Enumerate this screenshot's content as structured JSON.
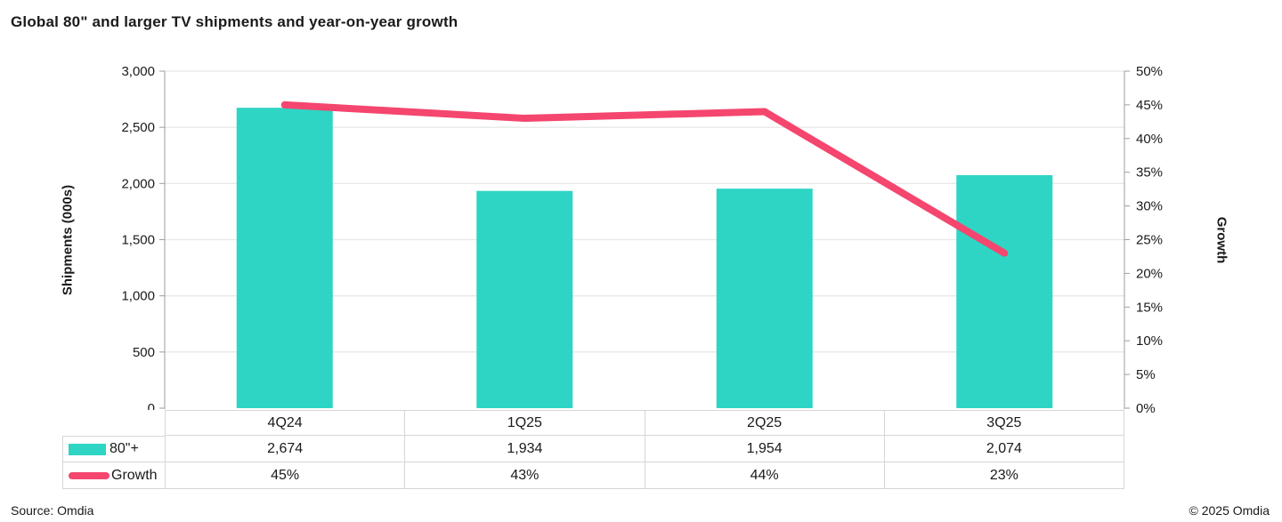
{
  "title": "Global 80\" and larger TV shipments and year-on-year growth",
  "chart_data": {
    "type": "combo",
    "categories": [
      "4Q24",
      "1Q25",
      "2Q25",
      "3Q25"
    ],
    "series": [
      {
        "name": "80\"+",
        "type": "bar",
        "axis": "left",
        "values": [
          2674,
          1934,
          1954,
          2074
        ],
        "color": "#2ED5C4"
      },
      {
        "name": "Growth",
        "type": "line",
        "axis": "right",
        "values": [
          45,
          43,
          44,
          23
        ],
        "color": "#F4466E"
      }
    ],
    "left_axis": {
      "label": "Shipments (000s)",
      "min": 0,
      "max": 3000,
      "step": 500
    },
    "right_axis": {
      "label": "Growth",
      "min": 0,
      "max": 50,
      "step": 5,
      "suffix": "%"
    },
    "grid": true,
    "legend_position": "data-table-left"
  },
  "table": {
    "rows": [
      {
        "label": "80\"+",
        "swatch": "bar",
        "values": [
          "2,674",
          "1,934",
          "1,954",
          "2,074"
        ]
      },
      {
        "label": "Growth",
        "swatch": "line",
        "values": [
          "45%",
          "43%",
          "44%",
          "23%"
        ]
      }
    ]
  },
  "footer": {
    "source": "Source: Omdia",
    "copyright": "© 2025 Omdia"
  },
  "colors": {
    "bar": "#2ED5C4",
    "line": "#F4466E",
    "axis": "#9E9E9E",
    "grid": "#E8E8E8",
    "table_border": "#D6D6D6",
    "text": "#1A1A1A"
  }
}
